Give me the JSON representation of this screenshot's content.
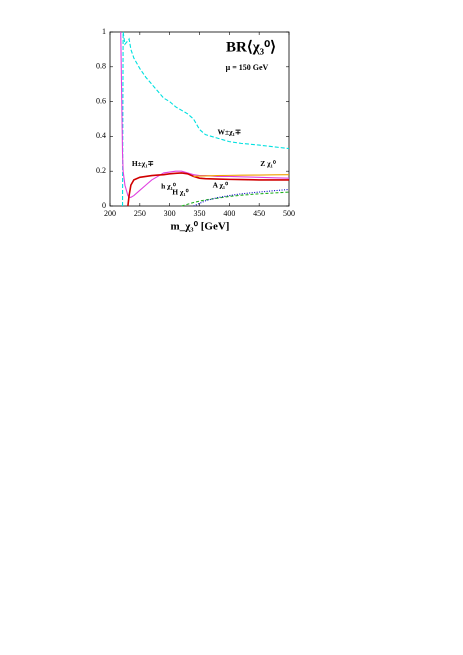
{
  "chart_data": {
    "type": "line",
    "title": "BR⟨χ₃⁰⟩",
    "subtitle": "μ = 150 GeV",
    "x_label": "m_χ₃⁰ [GeV]",
    "x": [
      218,
      221,
      222,
      225,
      230,
      232,
      235,
      240,
      250,
      260,
      270,
      280,
      290,
      300,
      310,
      320,
      330,
      340,
      350,
      360,
      380,
      400,
      420,
      450,
      475,
      500
    ],
    "series": [
      {
        "name": "W±χ₁∓",
        "color": "#00e0e0",
        "dash": "4 2",
        "values": [
          null,
          0,
          1.0,
          0.93,
          0.95,
          0.96,
          0.9,
          0.85,
          0.79,
          0.74,
          0.7,
          0.66,
          0.62,
          0.6,
          0.57,
          0.55,
          0.53,
          0.5,
          0.44,
          0.41,
          0.39,
          0.37,
          0.36,
          0.35,
          0.34,
          0.33
        ]
      },
      {
        "name": "Z χ₁⁰",
        "color": "#e040e0",
        "dash": "",
        "values": [
          1.0,
          0.3,
          0.2,
          0.12,
          0.06,
          0.05,
          0.05,
          0.06,
          0.09,
          0.12,
          0.15,
          0.17,
          0.19,
          0.195,
          0.2,
          0.2,
          0.19,
          0.18,
          0.175,
          0.175,
          0.17,
          0.17,
          0.168,
          0.165,
          0.162,
          0.16
        ]
      },
      {
        "name": "h χ₁⁰",
        "color": "#d00000",
        "dash": "",
        "values": [
          null,
          null,
          null,
          null,
          0,
          0.06,
          0.12,
          0.15,
          0.165,
          0.17,
          0.175,
          0.178,
          0.18,
          0.185,
          0.188,
          0.19,
          0.185,
          0.17,
          0.16,
          0.157,
          0.155,
          0.153,
          0.152,
          0.15,
          0.15,
          0.15
        ]
      },
      {
        "name": "H±χ₁∓",
        "color": "#f0a000",
        "dash": "",
        "values": [
          null,
          null,
          null,
          null,
          null,
          null,
          null,
          null,
          null,
          null,
          null,
          null,
          null,
          null,
          null,
          null,
          null,
          0.17,
          0.172,
          0.173,
          0.175,
          0.176,
          0.177,
          0.178,
          0.179,
          0.18
        ]
      },
      {
        "name": "H χ₁⁰",
        "color": "#20b020",
        "dash": "3 2",
        "values": [
          null,
          null,
          null,
          null,
          null,
          null,
          null,
          null,
          null,
          null,
          null,
          null,
          null,
          null,
          null,
          0,
          0.01,
          0.02,
          0.028,
          0.035,
          0.045,
          0.055,
          0.062,
          0.07,
          0.075,
          0.08
        ]
      },
      {
        "name": "A χ₁⁰",
        "color": "#0000c0",
        "dash": "1 1.5",
        "values": [
          null,
          null,
          null,
          null,
          null,
          null,
          null,
          null,
          null,
          null,
          null,
          null,
          null,
          null,
          null,
          null,
          null,
          0,
          0.015,
          0.03,
          0.048,
          0.06,
          0.07,
          0.08,
          0.088,
          0.095
        ]
      }
    ],
    "xlim": [
      200,
      500
    ],
    "xticks": [
      200,
      250,
      300,
      350,
      400,
      450,
      500
    ],
    "ylim": [
      0,
      1
    ],
    "yticks": [
      0,
      0.2,
      0.4,
      0.6,
      0.8,
      1
    ]
  }
}
